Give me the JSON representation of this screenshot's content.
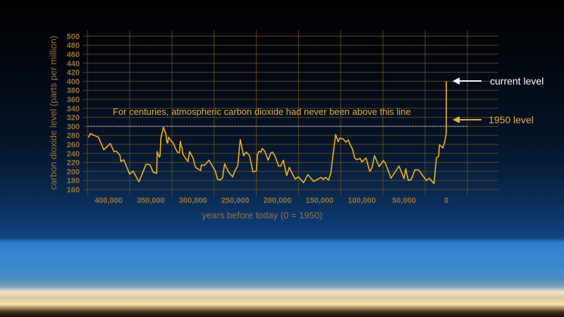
{
  "chart_data": {
    "type": "line",
    "title": "",
    "xlabel": "years before today (0 = 1950)",
    "ylabel": "carbon dioxide level (parts per million)",
    "xlim": [
      427000,
      -62000
    ],
    "ylim": [
      160,
      500
    ],
    "x_reversed": true,
    "grid": true,
    "x_ticks": [
      400000,
      350000,
      300000,
      250000,
      200000,
      150000,
      100000,
      50000,
      0
    ],
    "x_tick_labels": [
      "400,000",
      "350,000",
      "300,000",
      "250,000",
      "200,000",
      "150,000",
      "100,000",
      "50,000",
      "0"
    ],
    "x_gridlines": [
      425000,
      375000,
      325000,
      275000,
      225000,
      175000,
      125000,
      75000,
      25000,
      -25000
    ],
    "y_ticks": [
      160,
      180,
      200,
      220,
      240,
      260,
      280,
      300,
      320,
      340,
      360,
      380,
      400,
      420,
      440,
      460,
      480,
      500
    ],
    "line_color": "#f2b418",
    "reference_line": {
      "value": 300,
      "color": "#9a9a9a",
      "label": "For centuries, atmospheric carbon dioxide had never been above this line"
    },
    "annotations": [
      {
        "label": "current level",
        "ppm": 400,
        "color": "#ffffff"
      },
      {
        "label": "1950 level",
        "ppm": 310,
        "color": "#e3b13c"
      }
    ],
    "series": [
      {
        "x": [
          424000,
          421600,
          417000,
          412000,
          405600,
          398000,
          393500,
          390700,
          386500,
          385500,
          382000,
          375000,
          371000,
          364000,
          355600,
          351000,
          347000,
          343000,
          342500,
          340000,
          339000,
          338000,
          335000,
          332000,
          331000,
          330000,
          329000,
          325000,
          324000,
          320000,
          318000,
          316000,
          315000,
          314000,
          313000,
          312000,
          306000,
          304000,
          300000,
          297000,
          291000,
          290000,
          286000,
          281000,
          273600,
          271000,
          268000,
          265000,
          264000,
          262500,
          258000,
          253000,
          250500,
          247000,
          244000,
          240000,
          237000,
          233000,
          229000,
          225000,
          223600,
          221600,
          219400,
          218000,
          215000,
          211000,
          208000,
          206000,
          203000,
          198600,
          196000,
          193000,
          189000,
          186000,
          179000,
          175000,
          169000,
          164000,
          157000,
          148000,
          146000,
          143000,
          139400,
          136700,
          134000,
          131000,
          128000,
          126000,
          122000,
          119000,
          116000,
          114000,
          111000,
          108500,
          106000,
          102000,
          100000,
          95000,
          90600,
          88000,
          85000,
          79500,
          74500,
          72000,
          65500,
          56000,
          50000,
          48000,
          45000,
          41500,
          37000,
          32500,
          23600,
          20000,
          14500,
          11600,
          9000,
          8000,
          4000,
          2000,
          1000,
          0,
          0,
          -70
        ],
        "y": [
          275,
          284,
          280,
          276,
          248,
          262,
          244,
          245,
          236,
          222,
          226,
          194,
          201,
          177,
          216,
          215,
          198,
          196,
          244,
          232,
          234,
          274,
          298,
          283,
          266,
          263,
          276,
          266,
          265,
          248,
          242,
          242,
          267,
          256,
          253,
          238,
          222,
          244,
          230,
          209,
          202,
          214,
          214,
          225,
          201,
          183,
          181,
          186,
          200,
          217,
          199,
          188,
          201,
          212,
          271,
          235,
          243,
          235,
          199,
          201,
          238,
          245,
          243,
          251,
          245,
          225,
          240,
          243,
          235,
          212,
          212,
          225,
          191,
          209,
          183,
          188,
          175,
          193,
          178,
          187,
          182,
          187,
          181,
          197,
          238,
          282,
          266,
          274,
          272,
          265,
          270,
          260,
          249,
          230,
          226,
          229,
          221,
          230,
          200,
          208,
          235,
          211,
          224,
          218,
          185,
          212,
          184,
          206,
          180,
          182,
          204,
          203,
          180,
          185,
          173,
          230,
          234,
          259,
          252,
          265,
          275,
          285,
          310,
          400
        ]
      }
    ]
  }
}
